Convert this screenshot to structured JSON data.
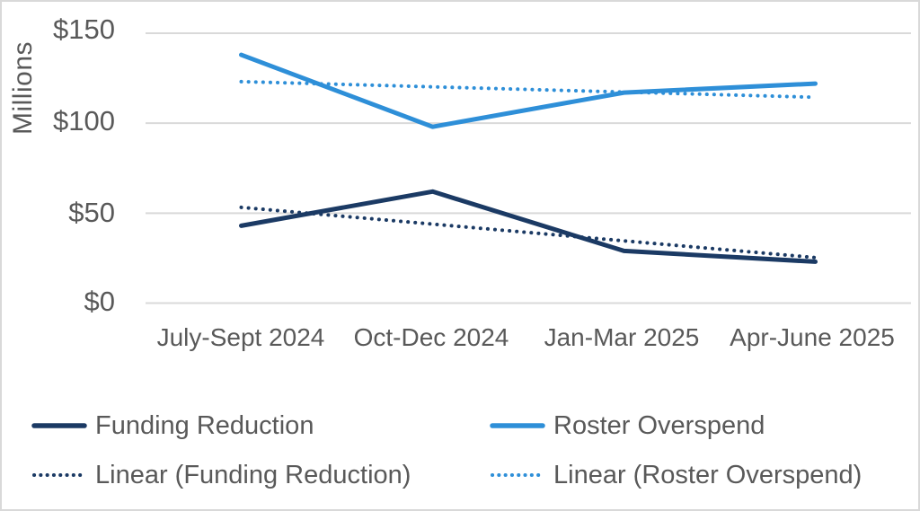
{
  "chart_data": {
    "type": "line",
    "title": "",
    "xlabel": "",
    "ylabel": "Millions",
    "categories": [
      "July-Sept 2024",
      "Oct-Dec 2024",
      "Jan-Mar 2025",
      "Apr-June 2025"
    ],
    "y_axis": {
      "min": 0,
      "max": 150,
      "tick_step": 50,
      "tick_labels_top_to_bottom": [
        "$150",
        "$100",
        "$50",
        "$0"
      ],
      "grid": true
    },
    "series": [
      {
        "name": "Funding Reduction",
        "values": [
          43,
          62,
          29,
          23
        ],
        "color": "#1B3A64",
        "style": "solid"
      },
      {
        "name": "Roster Overspend",
        "values": [
          138,
          98,
          117,
          122
        ],
        "color": "#2E8FD8",
        "style": "solid"
      },
      {
        "name": "Linear (Funding Reduction)",
        "values": [
          53.2,
          43.9,
          34.6,
          25.3
        ],
        "color": "#1B3A64",
        "style": "dotted"
      },
      {
        "name": "Linear (Roster Overspend)",
        "values": [
          123.1,
          120.2,
          117.3,
          114.4
        ],
        "color": "#2E8FD8",
        "style": "dotted"
      }
    ],
    "legend": {
      "position": "bottom",
      "columns": 2,
      "order_of_series_indices": [
        0,
        1,
        2,
        3
      ]
    },
    "grid_color": "#D9D9D9",
    "text_color": "#595959"
  }
}
